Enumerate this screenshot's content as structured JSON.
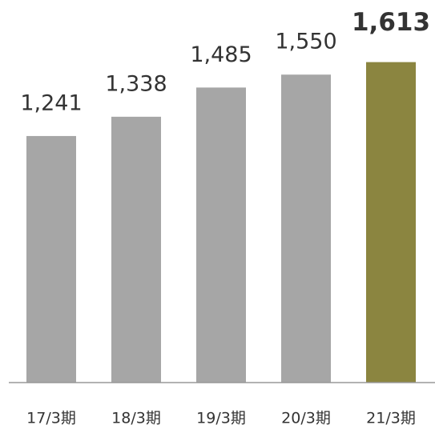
{
  "chart_data": {
    "type": "bar",
    "categories": [
      "17/3期",
      "18/3期",
      "19/3期",
      "20/3期",
      "21/3期"
    ],
    "values": [
      1241,
      1338,
      1485,
      1550,
      1613
    ],
    "value_labels": [
      "1,241",
      "1,338",
      "1,485",
      "1,550",
      "1,613"
    ],
    "colors": [
      "#a6a6a6",
      "#a6a6a6",
      "#a6a6a6",
      "#a6a6a6",
      "#8b8540"
    ],
    "ylim": [
      0,
      1700
    ]
  }
}
